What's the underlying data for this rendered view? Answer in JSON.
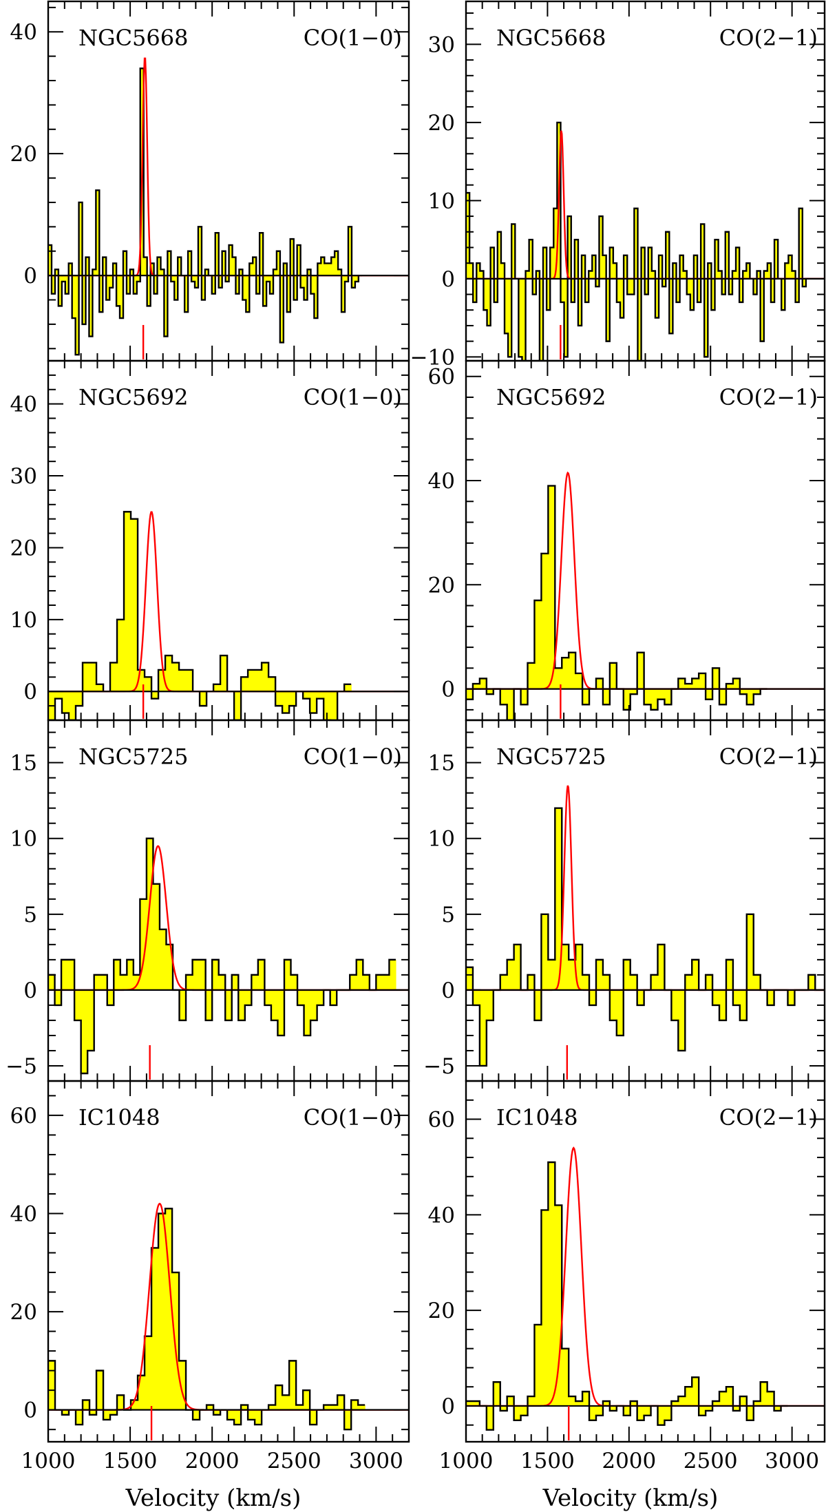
{
  "figure": {
    "xlabel": "Velocity (km/s)",
    "colors": {
      "fill": "#ffff00",
      "histogram": "#000000",
      "fit": "#ff0000",
      "marker": "#ff0000"
    }
  },
  "chart_data": [
    {
      "type": "histogram-with-fit",
      "galaxy": "NGC5668",
      "line": "CO(1−0)",
      "xlim": [
        1000,
        3200
      ],
      "ylim": [
        -14,
        45
      ],
      "yticks": [
        0,
        20,
        40
      ],
      "xticks": [
        1000,
        1500,
        2000,
        2500,
        3000
      ],
      "xlabel": "",
      "channel_start": 1000,
      "channel_width": 20.8,
      "systemic_velocity": 1580,
      "fit": {
        "amplitude": 36,
        "center": 1590,
        "sigma": 14
      },
      "values": [
        5,
        -3,
        1,
        -5,
        -1,
        -3,
        2,
        -7,
        -13,
        12,
        -8,
        3,
        -10,
        1,
        14,
        -6,
        3,
        -4,
        -2,
        2,
        -5,
        -7,
        4,
        -3,
        1,
        -3,
        -1,
        34,
        3,
        -5,
        2,
        -3,
        3,
        1,
        -10,
        4,
        -1,
        -4,
        3,
        0,
        -6,
        4,
        -1,
        -2,
        8,
        -4,
        1,
        0,
        -3,
        7,
        -2,
        4,
        -1,
        5,
        3,
        -3,
        1,
        -4,
        -6,
        2,
        3,
        -3,
        7,
        -5,
        -1,
        -3,
        1,
        4,
        -11,
        2,
        -6,
        6,
        -4,
        5,
        -2,
        -4,
        1,
        -3,
        -7,
        2,
        3,
        2,
        2,
        3,
        4,
        1,
        -6,
        -1,
        8,
        -2,
        -1,
        0
      ]
    },
    {
      "type": "histogram-with-fit",
      "galaxy": "NGC5668",
      "line": "CO(2−1)",
      "xlim": [
        1000,
        3200
      ],
      "ylim": [
        -10.5,
        35.5
      ],
      "yticks": [
        -10,
        0,
        10,
        20,
        30
      ],
      "xticks": [
        1000,
        1500,
        2000,
        2500,
        3000
      ],
      "xlabel": "",
      "channel_start": 1000,
      "channel_width": 21.5,
      "systemic_velocity": 1580,
      "fit": {
        "amplitude": 19,
        "center": 1585,
        "sigma": 14
      },
      "values": [
        11,
        2,
        -3,
        2,
        1,
        -4,
        -6,
        4,
        -3,
        6,
        2,
        -7,
        -10,
        7,
        0,
        -10,
        -13,
        1,
        5,
        -2,
        1,
        -12,
        4,
        -4,
        4,
        9,
        20,
        -3,
        -10,
        8,
        -3,
        5,
        -6,
        3,
        -3,
        1,
        3,
        -1,
        8,
        3,
        -8,
        4,
        2,
        -3,
        -5,
        3,
        -2,
        -2,
        9,
        -13,
        4,
        -2,
        4,
        1,
        -5,
        3,
        -1,
        6,
        -7,
        2,
        -3,
        3,
        1,
        -2,
        -4,
        3,
        -3,
        7,
        -10,
        2,
        -4,
        5,
        1,
        -2,
        6,
        -2,
        1,
        4,
        -3,
        1,
        2,
        0,
        -2,
        1,
        -8,
        1,
        2,
        -3,
        5,
        0,
        -4,
        2,
        3,
        1,
        -3,
        9,
        -1,
        0
      ]
    },
    {
      "type": "histogram-with-fit",
      "galaxy": "NGC5692",
      "line": "CO(1−0)",
      "xlim": [
        1000,
        3200
      ],
      "ylim": [
        -4,
        46
      ],
      "yticks": [
        0,
        10,
        20,
        30,
        40
      ],
      "xticks": [
        1000,
        1500,
        2000,
        2500,
        3000
      ],
      "xlabel": "",
      "channel_start": 1000,
      "channel_width": 42,
      "systemic_velocity": 1580,
      "fit": {
        "amplitude": 25,
        "center": 1630,
        "sigma": 34
      },
      "values": [
        -4,
        -1,
        -3,
        -4,
        -2,
        4,
        4,
        1,
        0,
        4,
        10,
        25,
        24,
        3,
        2,
        -1,
        3,
        5,
        4,
        3,
        3,
        0,
        -2,
        0,
        1,
        5,
        0,
        -4,
        2,
        3,
        3,
        4,
        2,
        -2,
        -3,
        -2,
        0,
        -1,
        -3,
        -1,
        -4,
        -5,
        0,
        1
      ]
    },
    {
      "type": "histogram-with-fit",
      "galaxy": "NGC5692",
      "line": "CO(2−1)",
      "xlim": [
        1000,
        3200
      ],
      "ylim": [
        -6,
        63
      ],
      "yticks": [
        0,
        20,
        40,
        60
      ],
      "xticks": [
        1000,
        1500,
        2000,
        2500,
        3000
      ],
      "xlabel": "",
      "channel_start": 1000,
      "channel_width": 42,
      "systemic_velocity": 1580,
      "fit": {
        "amplitude": 41.5,
        "center": 1625,
        "sigma": 40
      },
      "values": [
        -2,
        1,
        2,
        -1,
        0,
        -3,
        -6,
        0,
        -3,
        5,
        17,
        26,
        39,
        4,
        6,
        7,
        3,
        -3,
        0,
        2,
        -3,
        5,
        0,
        -4,
        -1,
        7,
        -3,
        -4,
        -2,
        -3,
        0,
        2,
        1,
        2,
        3,
        -2,
        4,
        -3,
        1,
        2,
        -1,
        -3,
        -1,
        0
      ]
    },
    {
      "type": "histogram-with-fit",
      "galaxy": "NGC5725",
      "line": "CO(1−0)",
      "xlim": [
        1000,
        3200
      ],
      "ylim": [
        -6,
        17.8
      ],
      "yticks": [
        -5,
        0,
        5,
        10,
        15
      ],
      "xticks": [
        1000,
        1500,
        2000,
        2500,
        3000
      ],
      "xlabel": "",
      "channel_start": 1000,
      "channel_width": 40,
      "systemic_velocity": 1620,
      "fit": {
        "amplitude": 9.5,
        "center": 1670,
        "sigma": 50
      },
      "values": [
        1,
        -1,
        2,
        2,
        -2,
        -5.5,
        -4,
        1,
        1,
        -1,
        2,
        1,
        2,
        1,
        6,
        10,
        7,
        4,
        3,
        0,
        -2,
        1,
        2,
        2,
        -2,
        2,
        1,
        -2,
        1,
        -2,
        -1,
        1,
        2,
        -1,
        -2,
        -3,
        2,
        1,
        -1,
        -3,
        -2,
        -1,
        0,
        -1,
        0,
        0,
        1,
        2,
        1,
        0,
        1,
        1,
        2
      ]
    },
    {
      "type": "histogram-with-fit",
      "galaxy": "NGC5725",
      "line": "CO(2−1)",
      "xlim": [
        1000,
        3200
      ],
      "ylim": [
        -6,
        17.8
      ],
      "yticks": [
        -5,
        0,
        5,
        10,
        15
      ],
      "xticks": [
        1000,
        1500,
        2000,
        2500,
        3000
      ],
      "xlabel": "",
      "channel_start": 1000,
      "channel_width": 42,
      "systemic_velocity": 1620,
      "fit": {
        "amplitude": 13.5,
        "center": 1625,
        "sigma": 22
      },
      "values": [
        1.5,
        -1,
        -5,
        -2,
        0,
        1,
        2,
        3,
        0,
        1,
        -2,
        5,
        2,
        12,
        3,
        2,
        3,
        1,
        -1,
        2,
        1,
        -2,
        -3,
        2,
        1,
        -1,
        0,
        1,
        3,
        0,
        -2,
        -4,
        1,
        2,
        0,
        1,
        -1,
        -2,
        2,
        -1,
        -2,
        5,
        1,
        0,
        -1,
        0,
        0,
        -1,
        0,
        0,
        1,
        0,
        0
      ]
    },
    {
      "type": "histogram-with-fit",
      "galaxy": "IC1048",
      "line": "CO(1−0)",
      "xlim": [
        1000,
        3200
      ],
      "ylim": [
        -6.5,
        67
      ],
      "yticks": [
        0,
        20,
        40,
        60
      ],
      "xticks": [
        1000,
        1500,
        2000,
        2500,
        3000
      ],
      "xlabel": "Velocity (km/s)",
      "channel_start": 1000,
      "channel_width": 42,
      "systemic_velocity": 1630,
      "fit": {
        "amplitude": 42,
        "center": 1680,
        "sigma": 62
      },
      "values": [
        10,
        0,
        -1,
        0,
        -3,
        2,
        -1,
        8,
        -2,
        -1,
        3,
        0,
        2,
        7,
        15,
        33,
        40,
        41,
        28,
        10,
        0,
        -2,
        0,
        1,
        -1,
        0,
        -2,
        -3,
        1,
        -2,
        -3,
        0,
        1,
        5,
        3,
        10,
        1,
        4,
        -3,
        0,
        1,
        1,
        3,
        -4,
        2,
        1
      ]
    },
    {
      "type": "histogram-with-fit",
      "galaxy": "IC1048",
      "line": "CO(2−1)",
      "xlim": [
        1000,
        3200
      ],
      "ylim": [
        -7.5,
        68
      ],
      "yticks": [
        0,
        20,
        40,
        60
      ],
      "xticks": [
        1000,
        1500,
        2000,
        2500,
        3000
      ],
      "xlabel": "Velocity (km/s)",
      "channel_start": 1000,
      "channel_width": 42,
      "systemic_velocity": 1630,
      "fit": {
        "amplitude": 54,
        "center": 1660,
        "sigma": 48
      },
      "values": [
        1,
        1,
        0,
        -5,
        5,
        -1,
        2,
        -3,
        -2,
        2,
        17,
        41,
        51,
        42,
        12,
        2,
        1,
        3,
        -3,
        -2,
        1,
        -1,
        0,
        -2,
        1,
        -3,
        -2,
        0,
        -4,
        -3,
        1,
        2,
        4,
        6,
        -2,
        -1,
        1,
        3,
        4,
        -1,
        2,
        -3,
        1,
        5,
        3,
        -1,
        0
      ]
    }
  ]
}
